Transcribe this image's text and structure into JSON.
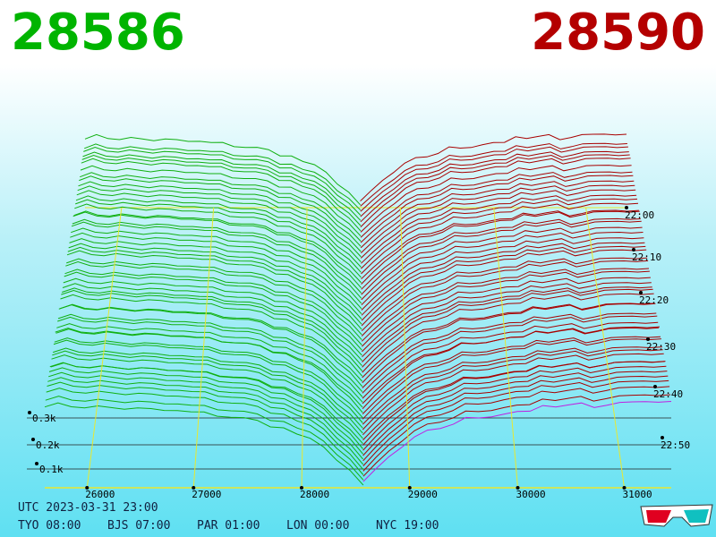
{
  "header": {
    "bid": "28586",
    "ask": "28590"
  },
  "price_ticks": [
    "26000",
    "27000",
    "28000",
    "29000",
    "30000",
    "31000"
  ],
  "time_ticks": [
    "22:00",
    "22:10",
    "22:20",
    "22:30",
    "22:40",
    "22:50"
  ],
  "volume_ticks": [
    "0.3k",
    "0.2k",
    "0.1k"
  ],
  "footer": {
    "utc": "UTC 2023-03-31 23:00",
    "zones": [
      "TYO 08:00",
      "BJS 07:00",
      "PAR 01:00",
      "LON 00:00",
      "NYC 19:00"
    ]
  }
}
